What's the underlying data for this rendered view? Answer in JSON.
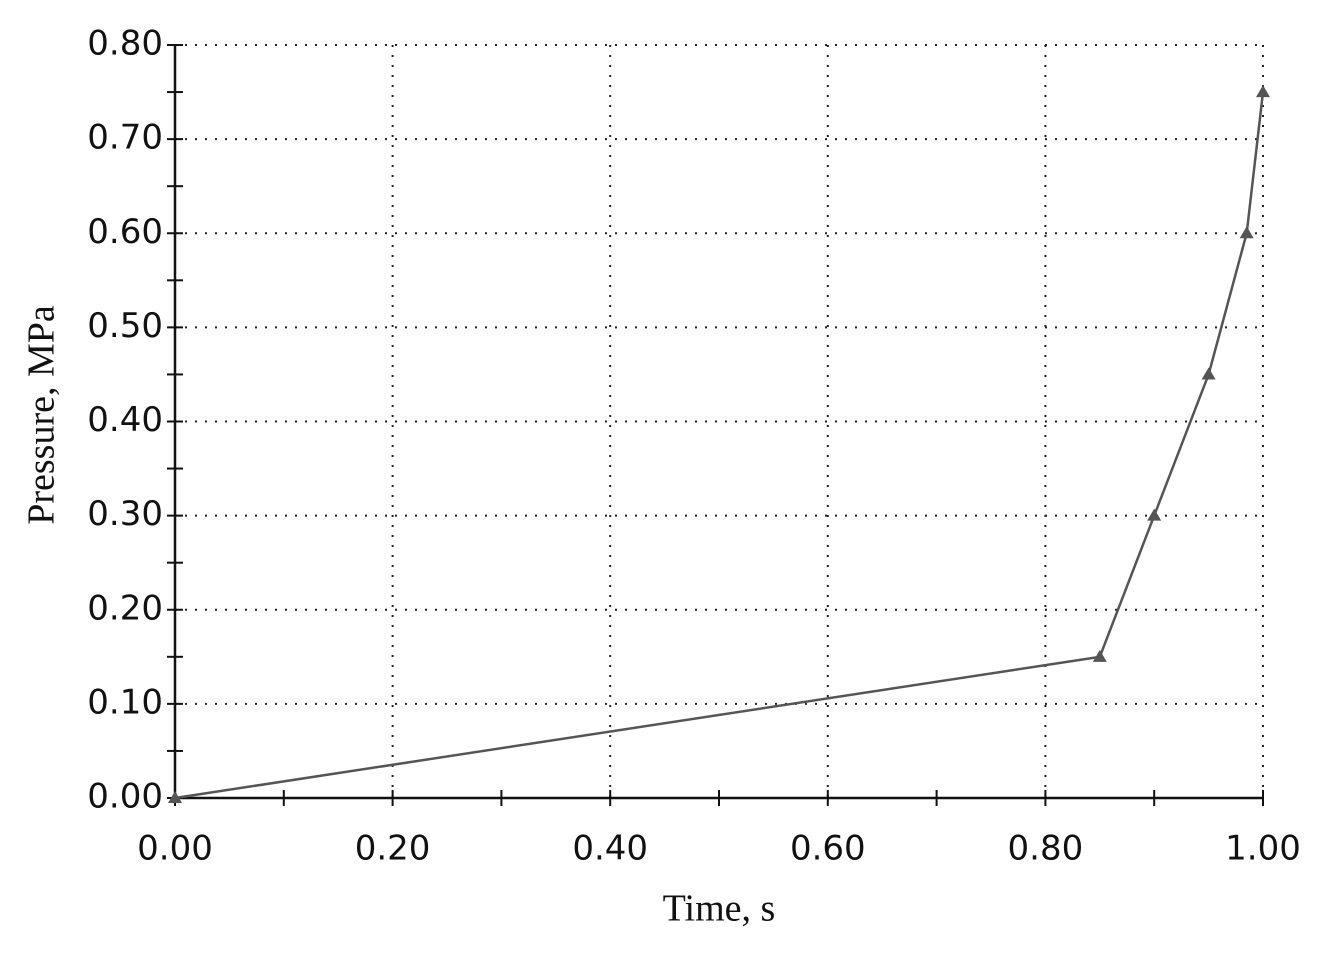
{
  "chart_data": {
    "type": "line",
    "x_label": "Time, s",
    "y_label": "Pressure, MPa",
    "series": [
      {
        "color": "#555555",
        "marker": "triangle",
        "x": [
          0,
          0.85,
          0.9,
          0.95,
          0.985,
          1.0
        ],
        "values": [
          0,
          0.15,
          0.3,
          0.45,
          0.6,
          0.75
        ]
      }
    ],
    "xlim": [
      0,
      1
    ],
    "ylim": [
      0,
      0.8
    ],
    "xticks": [
      {
        "value": 0,
        "label": "0.00"
      },
      {
        "value": 0.2,
        "label": "0.20"
      },
      {
        "value": 0.4,
        "label": "0.40"
      },
      {
        "value": 0.6,
        "label": "0.60"
      },
      {
        "value": 0.8,
        "label": "0.80"
      },
      {
        "value": 1.0,
        "label": "1.00"
      }
    ],
    "xminorticks": [
      0.1,
      0.3,
      0.5,
      0.7,
      0.9
    ],
    "yticks": [
      {
        "value": 0,
        "label": "0.00"
      },
      {
        "value": 0.1,
        "label": "0.10"
      },
      {
        "value": 0.2,
        "label": "0.20"
      },
      {
        "value": 0.3,
        "label": "0.30"
      },
      {
        "value": 0.4,
        "label": "0.40"
      },
      {
        "value": 0.5,
        "label": "0.50"
      },
      {
        "value": 0.6,
        "label": "0.60"
      },
      {
        "value": 0.7,
        "label": "0.70"
      },
      {
        "value": 0.8,
        "label": "0.80"
      }
    ],
    "yminorticks": [
      0.05,
      0.15,
      0.25,
      0.35,
      0.45,
      0.55,
      0.65,
      0.75
    ],
    "grid": true
  }
}
